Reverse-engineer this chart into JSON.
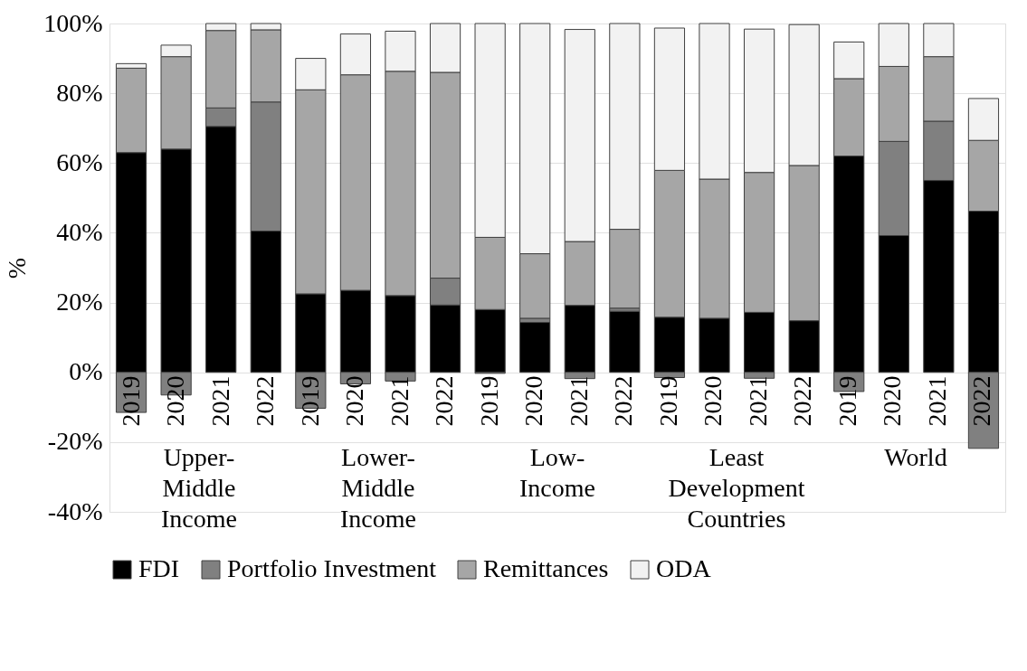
{
  "chart_data": {
    "type": "bar",
    "stacked": true,
    "ylabel": "%",
    "categories": [
      "2019",
      "2020",
      "2021",
      "2022",
      "2019",
      "2020",
      "2021",
      "2022",
      "2019",
      "2020",
      "2021",
      "2022",
      "2019",
      "2020",
      "2021",
      "2022",
      "2019",
      "2020",
      "2021",
      "2022"
    ],
    "series": [
      {
        "name": "FDI",
        "color": "#000000",
        "values": [
          63,
          64,
          70.5,
          40.5,
          22.5,
          23.5,
          22,
          19.3,
          18,
          14.3,
          19.2,
          17.5,
          15.8,
          15.5,
          17.2,
          14.8,
          62,
          39.2,
          55,
          46.2
        ]
      },
      {
        "name": "Portfolio Investment",
        "color": "#808080",
        "values": [
          -11.5,
          -6.5,
          5.3,
          37,
          -10.3,
          -3.3,
          -2.5,
          7.7,
          -0.3,
          1.2,
          -1.8,
          0.9,
          -1.5,
          null,
          -1.7,
          null,
          -5.5,
          27,
          17,
          -21.8
        ]
      },
      {
        "name": "Remittances",
        "color": "#a6a6a6",
        "values": [
          24.2,
          26.5,
          22.2,
          20.7,
          58.5,
          61.8,
          64.3,
          59,
          20.7,
          18.5,
          18.3,
          22.6,
          42.1,
          39.9,
          40.1,
          44.5,
          22.2,
          21.5,
          18.5,
          20.3
        ]
      },
      {
        "name": "ODA",
        "color": "#f2f2f2",
        "values": [
          1.3,
          3.3,
          2,
          1.8,
          9,
          11.7,
          11.5,
          14,
          61.3,
          66,
          60.8,
          59,
          40.8,
          44.6,
          41.1,
          40.4,
          10.5,
          12.3,
          9.5,
          12
        ]
      }
    ],
    "annotations": [
      "Upper-Middle Income",
      "Lower-Middle Income",
      "Low-Income",
      "Least Development Countries",
      "World"
    ],
    "ylim": [
      -40,
      100
    ],
    "yticks": [
      {
        "value": -40,
        "label": "-40%"
      },
      {
        "value": -20,
        "label": "-20%"
      },
      {
        "value": 0,
        "label": "0%"
      },
      {
        "value": 20,
        "label": "20%"
      },
      {
        "value": 40,
        "label": "40%"
      },
      {
        "value": 60,
        "label": "60%"
      },
      {
        "value": 80,
        "label": "80%"
      },
      {
        "value": 100,
        "label": "100%"
      }
    ],
    "grid": "y",
    "legend": "bottom"
  }
}
